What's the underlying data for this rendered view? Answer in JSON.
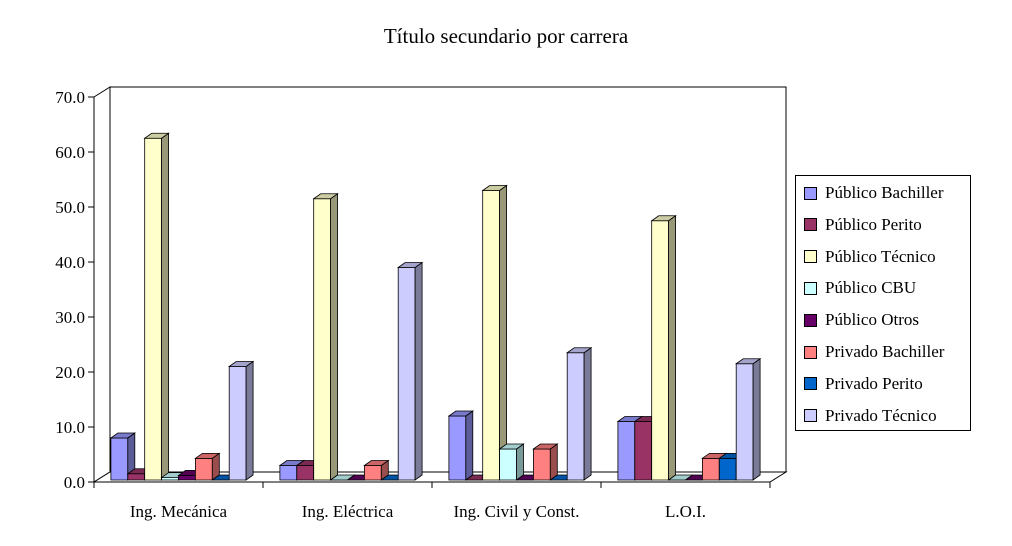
{
  "chart_data": {
    "type": "bar",
    "title": "Título secundario por carrera",
    "categories": [
      "Ing. Mecánica",
      "Ing. Eléctrica",
      "Ing. Civil y Const.",
      "L.O.I."
    ],
    "ylim": [
      0,
      70
    ],
    "yticks": [
      "0.0",
      "10.0",
      "20.0",
      "30.0",
      "40.0",
      "50.0",
      "60.0",
      "70.0"
    ],
    "legend_position": "right",
    "series": [
      {
        "name": "Público Bachiller",
        "color": "#9999ff",
        "values": [
          8.0,
          3.0,
          12.0,
          11.0
        ]
      },
      {
        "name": "Público Perito",
        "color": "#993366",
        "values": [
          1.5,
          3.0,
          0.3,
          11.0
        ]
      },
      {
        "name": "Público Técnico",
        "color": "#ffffcc",
        "values": [
          62.5,
          51.5,
          53.0,
          47.5
        ]
      },
      {
        "name": "Público CBU",
        "color": "#ccffff",
        "values": [
          0.8,
          0.0,
          6.0,
          0.0
        ]
      },
      {
        "name": "Público Otros",
        "color": "#660066",
        "values": [
          1.2,
          0.0,
          0.3,
          0.3
        ]
      },
      {
        "name": "Privado Bachiller",
        "color": "#ff8080",
        "values": [
          4.3,
          3.0,
          6.0,
          4.3
        ]
      },
      {
        "name": "Privado Perito",
        "color": "#0066cc",
        "values": [
          0.3,
          0.3,
          0.3,
          4.3
        ]
      },
      {
        "name": "Privado Técnico",
        "color": "#ccccff",
        "values": [
          21.0,
          39.0,
          23.5,
          21.5
        ]
      }
    ]
  }
}
